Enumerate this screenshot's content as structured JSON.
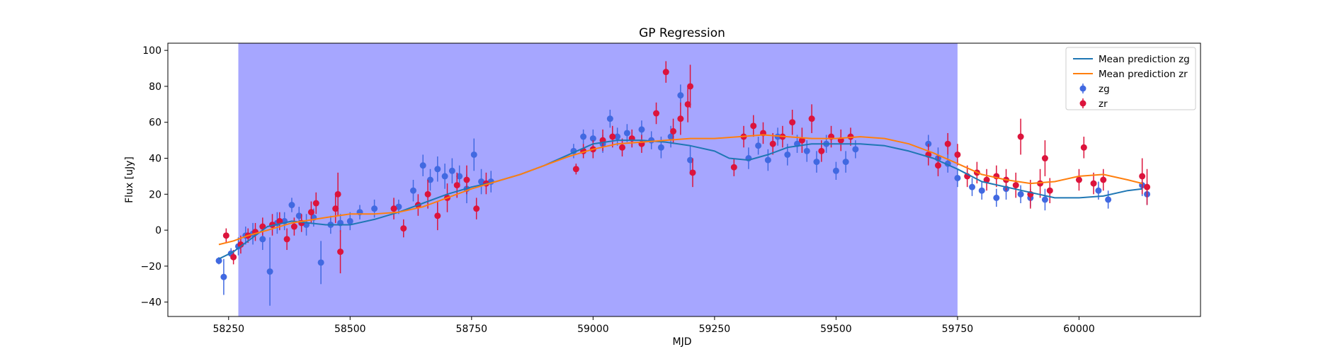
{
  "chart_data": {
    "type": "scatter",
    "title": "GP Regression",
    "xlabel": "MJD",
    "ylabel": "Flux [uJy]",
    "xlim": [
      58125,
      60250
    ],
    "ylim": [
      -48,
      104
    ],
    "xticks": [
      58250,
      58500,
      58750,
      59000,
      59250,
      59500,
      59750,
      60000
    ],
    "xtick_labels": [
      "58250",
      "58500",
      "58750",
      "59000",
      "59250",
      "59500",
      "59750",
      "60000"
    ],
    "yticks": [
      -40,
      -20,
      0,
      20,
      40,
      60,
      80,
      100
    ],
    "ytick_labels": [
      "−40",
      "−20",
      "0",
      "20",
      "40",
      "60",
      "80",
      "100"
    ],
    "grid": false,
    "legend_position": "top-right",
    "colors": {
      "zg_points": "#4169e1",
      "zr_points": "#dc143c",
      "mean_zg": "#1f77b4",
      "mean_zr": "#ff7f0e",
      "highlight_span": "#a6a6ff"
    },
    "highlight_span": {
      "x_start": 58270,
      "x_end": 59750
    },
    "lines": [
      {
        "name": "Mean prediction zg",
        "color": "#1f77b4",
        "x": [
          58230,
          58260,
          58290,
          58330,
          58380,
          58450,
          58500,
          58550,
          58600,
          58650,
          58700,
          58750,
          58800,
          58850,
          58900,
          58950,
          59000,
          59050,
          59100,
          59150,
          59200,
          59250,
          59280,
          59320,
          59360,
          59400,
          59450,
          59500,
          59550,
          59600,
          59650,
          59700,
          59750,
          59800,
          59850,
          59900,
          59950,
          60000,
          60050,
          60100,
          60130
        ],
        "y": [
          -16,
          -12,
          -6,
          2,
          5,
          3,
          3,
          6,
          10,
          15,
          20,
          24,
          27,
          31,
          36,
          42,
          48,
          50,
          50,
          49,
          47,
          44,
          40,
          39,
          42,
          46,
          48,
          48,
          48,
          47,
          44,
          40,
          34,
          27,
          24,
          21,
          18,
          18,
          19,
          22,
          23
        ]
      },
      {
        "name": "Mean prediction zr",
        "color": "#ff7f0e",
        "x": [
          58230,
          58260,
          58290,
          58330,
          58380,
          58450,
          58500,
          58550,
          58600,
          58650,
          58700,
          58750,
          58800,
          58850,
          58900,
          58950,
          59000,
          59050,
          59100,
          59150,
          59200,
          59250,
          59300,
          59350,
          59400,
          59450,
          59500,
          59550,
          59600,
          59650,
          59700,
          59750,
          59800,
          59850,
          59900,
          59950,
          60000,
          60050,
          60100,
          60130
        ],
        "y": [
          -8,
          -6,
          -3,
          0,
          4,
          7,
          9,
          9,
          10,
          13,
          18,
          23,
          27,
          31,
          36,
          41,
          45,
          48,
          49,
          50,
          51,
          51,
          52,
          53,
          52,
          51,
          51,
          52,
          51,
          48,
          43,
          37,
          31,
          28,
          26,
          27,
          30,
          31,
          28,
          26
        ]
      }
    ],
    "series": [
      {
        "name": "zg",
        "color": "#4169e1",
        "x": [
          58230,
          58240,
          58255,
          58270,
          58285,
          58300,
          58320,
          58335,
          58350,
          58365,
          58380,
          58395,
          58410,
          58425,
          58440,
          58460,
          58480,
          58500,
          58520,
          58550,
          58600,
          58630,
          58650,
          58665,
          58680,
          58695,
          58710,
          58725,
          58740,
          58755,
          58770,
          58790,
          58960,
          58980,
          59000,
          59020,
          59035,
          59050,
          59070,
          59100,
          59120,
          59140,
          59160,
          59180,
          59200,
          59320,
          59340,
          59360,
          59380,
          59400,
          59420,
          59440,
          59460,
          59480,
          59500,
          59520,
          59540,
          59690,
          59710,
          59730,
          59750,
          59780,
          59800,
          59830,
          59850,
          59880,
          59900,
          59930,
          60040,
          60060,
          60130,
          60140
        ],
        "y": [
          -17,
          -26,
          -13,
          -9,
          -3,
          -2,
          -5,
          -23,
          4,
          5,
          14,
          8,
          3,
          7,
          -18,
          3,
          4,
          5,
          10,
          12,
          13,
          22,
          36,
          28,
          34,
          30,
          33,
          30,
          23,
          42,
          27,
          27,
          44,
          52,
          51,
          48,
          62,
          52,
          54,
          56,
          50,
          46,
          52,
          75,
          39,
          40,
          47,
          39,
          52,
          42,
          48,
          44,
          38,
          48,
          33,
          38,
          45,
          48,
          40,
          37,
          29,
          24,
          22,
          18,
          23,
          20,
          18,
          17,
          22,
          17,
          25,
          20
        ],
        "err": [
          2,
          10,
          3,
          5,
          5,
          6,
          6,
          19,
          6,
          5,
          4,
          5,
          6,
          5,
          12,
          5,
          5,
          5,
          4,
          5,
          4,
          6,
          6,
          6,
          7,
          7,
          7,
          6,
          8,
          9,
          7,
          6,
          4,
          4,
          5,
          5,
          5,
          5,
          5,
          5,
          5,
          6,
          6,
          6,
          8,
          6,
          5,
          6,
          5,
          6,
          5,
          6,
          6,
          5,
          5,
          6,
          5,
          5,
          6,
          5,
          5,
          5,
          5,
          5,
          6,
          5,
          5,
          6,
          5,
          5,
          6,
          6
        ]
      },
      {
        "name": "zr",
        "color": "#dc143c",
        "x": [
          58245,
          58260,
          58275,
          58290,
          58305,
          58320,
          58340,
          58355,
          58370,
          58385,
          58400,
          58420,
          58430,
          58470,
          58475,
          58480,
          58590,
          58610,
          58640,
          58660,
          58680,
          58700,
          58720,
          58740,
          58760,
          58780,
          58965,
          58980,
          59000,
          59020,
          59040,
          59060,
          59080,
          59100,
          59130,
          59150,
          59165,
          59180,
          59195,
          59200,
          59205,
          59290,
          59310,
          59330,
          59350,
          59370,
          59390,
          59410,
          59430,
          59450,
          59470,
          59490,
          59510,
          59530,
          59690,
          59710,
          59730,
          59750,
          59770,
          59790,
          59810,
          59830,
          59850,
          59870,
          59880,
          59900,
          59920,
          59930,
          59940,
          60000,
          60010,
          60030,
          60050,
          60130,
          60140
        ],
        "y": [
          -3,
          -15,
          -8,
          -3,
          -1,
          2,
          3,
          5,
          -5,
          2,
          4,
          10,
          15,
          12,
          20,
          -12,
          12,
          1,
          14,
          20,
          8,
          18,
          25,
          28,
          12,
          26,
          34,
          44,
          45,
          50,
          52,
          46,
          51,
          48,
          65,
          88,
          55,
          62,
          70,
          80,
          32,
          35,
          52,
          58,
          54,
          48,
          52,
          60,
          50,
          62,
          44,
          52,
          50,
          52,
          42,
          36,
          48,
          42,
          30,
          32,
          28,
          30,
          28,
          25,
          52,
          20,
          26,
          40,
          22,
          28,
          46,
          26,
          28,
          30,
          24
        ],
        "err": [
          4,
          4,
          5,
          4,
          5,
          5,
          6,
          5,
          6,
          5,
          5,
          6,
          6,
          8,
          12,
          12,
          6,
          5,
          6,
          8,
          8,
          8,
          7,
          8,
          6,
          6,
          3,
          4,
          5,
          6,
          6,
          5,
          5,
          5,
          6,
          6,
          7,
          9,
          10,
          12,
          8,
          5,
          6,
          6,
          6,
          6,
          6,
          7,
          7,
          8,
          6,
          6,
          6,
          5,
          6,
          6,
          6,
          6,
          6,
          6,
          6,
          6,
          6,
          7,
          10,
          8,
          8,
          10,
          7,
          6,
          6,
          6,
          6,
          10,
          10
        ]
      }
    ],
    "legend": [
      {
        "label": "Mean prediction zg",
        "kind": "line",
        "color": "#1f77b4"
      },
      {
        "label": "Mean prediction zr",
        "kind": "line",
        "color": "#ff7f0e"
      },
      {
        "label": "zg",
        "kind": "errorbar",
        "color": "#4169e1"
      },
      {
        "label": "zr",
        "kind": "errorbar",
        "color": "#dc143c"
      }
    ]
  }
}
